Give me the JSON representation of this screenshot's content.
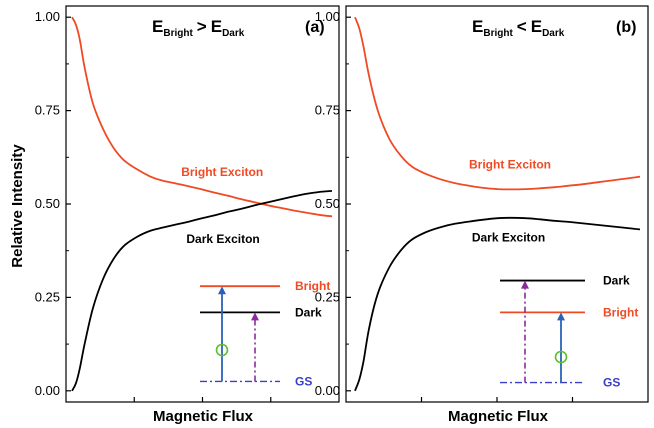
{
  "colors": {
    "bright": "#f04a25",
    "dark": "#000000",
    "gs": "#3a3fc8",
    "arrow_blue": "#2a62b8",
    "arrow_purple": "#8a2a9a",
    "circle": "#5abf2a"
  },
  "chart_data": [
    {
      "type": "line",
      "panel_label": "(a)",
      "title": {
        "lhs_main": "E",
        "lhs_sub": "Bright",
        "op": ">",
        "rhs_main": "E",
        "rhs_sub": "Dark"
      },
      "xlabel": "Magnetic Flux",
      "ylabel": "Relative Intensity",
      "xlim": [
        0,
        10
      ],
      "ylim": [
        -0.03,
        1.03
      ],
      "yticks": [
        0.0,
        0.25,
        0.5,
        0.75,
        1.0
      ],
      "ytick_labels": [
        "0.00",
        "0.25",
        "0.50",
        "0.75",
        "1.00"
      ],
      "grid": false,
      "series": [
        {
          "name": "Bright Exciton",
          "color_key": "bright",
          "x": [
            0.0,
            0.15,
            0.3,
            0.5,
            0.8,
            1.2,
            1.6,
            2.0,
            2.5,
            3.0,
            3.5,
            4.0,
            4.5,
            5.0,
            5.5,
            6.0,
            6.5,
            7.0,
            7.5,
            8.0,
            8.5,
            9.0,
            9.5,
            10.0
          ],
          "y": [
            1.0,
            0.98,
            0.94,
            0.86,
            0.77,
            0.7,
            0.65,
            0.617,
            0.593,
            0.574,
            0.562,
            0.555,
            0.547,
            0.539,
            0.53,
            0.522,
            0.513,
            0.505,
            0.497,
            0.49,
            0.483,
            0.477,
            0.471,
            0.467
          ]
        },
        {
          "name": "Dark Exciton",
          "color_key": "dark",
          "x": [
            0.0,
            0.15,
            0.3,
            0.5,
            0.8,
            1.2,
            1.6,
            2.0,
            2.5,
            3.0,
            3.5,
            4.0,
            4.5,
            5.0,
            5.5,
            6.0,
            6.5,
            7.0,
            7.5,
            8.0,
            8.5,
            9.0,
            9.5,
            10.0
          ],
          "y": [
            0.0,
            0.02,
            0.06,
            0.13,
            0.22,
            0.3,
            0.353,
            0.388,
            0.412,
            0.428,
            0.437,
            0.445,
            0.453,
            0.462,
            0.47,
            0.479,
            0.487,
            0.496,
            0.504,
            0.512,
            0.52,
            0.527,
            0.532,
            0.535
          ]
        }
      ],
      "annotations": [
        {
          "text": "Bright Exciton",
          "x": 4.2,
          "y": 0.575,
          "color_key": "bright"
        },
        {
          "text": "Dark Exciton",
          "x": 4.4,
          "y": 0.395,
          "color_key": "dark"
        }
      ],
      "inset": {
        "levels": [
          {
            "label": "Bright",
            "color_key": "bright",
            "y": 0.28
          },
          {
            "label": "Dark",
            "color_key": "dark",
            "y": 0.21
          },
          {
            "label": "GS",
            "color_key": "gs",
            "y": 0.025
          }
        ]
      }
    },
    {
      "type": "line",
      "panel_label": "(b)",
      "title": {
        "lhs_main": "E",
        "lhs_sub": "Bright",
        "op": "<",
        "rhs_main": "E",
        "rhs_sub": "Dark"
      },
      "xlabel": "Magnetic Flux",
      "ylabel": "",
      "xlim": [
        0,
        10
      ],
      "ylim": [
        -0.03,
        1.03
      ],
      "yticks": [
        0.0,
        0.25,
        0.5,
        0.75,
        1.0
      ],
      "ytick_labels": [
        "0.00",
        "0.25",
        "0.50",
        "0.75",
        "1.00"
      ],
      "grid": false,
      "series": [
        {
          "name": "Bright Exciton",
          "color_key": "bright",
          "x": [
            0.0,
            0.15,
            0.3,
            0.5,
            0.8,
            1.2,
            1.6,
            2.0,
            2.5,
            3.0,
            3.5,
            4.0,
            4.5,
            5.0,
            5.5,
            6.0,
            6.5,
            7.0,
            7.5,
            8.0,
            8.5,
            9.0,
            9.5,
            10.0
          ],
          "y": [
            1.0,
            0.97,
            0.92,
            0.84,
            0.75,
            0.675,
            0.63,
            0.6,
            0.58,
            0.566,
            0.556,
            0.549,
            0.543,
            0.54,
            0.539,
            0.54,
            0.542,
            0.545,
            0.549,
            0.553,
            0.558,
            0.563,
            0.568,
            0.573
          ]
        },
        {
          "name": "Dark Exciton",
          "color_key": "dark",
          "x": [
            0.0,
            0.15,
            0.3,
            0.5,
            0.8,
            1.2,
            1.6,
            2.0,
            2.5,
            3.0,
            3.5,
            4.0,
            4.5,
            5.0,
            5.5,
            6.0,
            6.5,
            7.0,
            7.5,
            8.0,
            8.5,
            9.0,
            9.5,
            10.0
          ],
          "y": [
            0.0,
            0.03,
            0.08,
            0.17,
            0.26,
            0.33,
            0.375,
            0.405,
            0.425,
            0.438,
            0.447,
            0.453,
            0.458,
            0.462,
            0.463,
            0.462,
            0.459,
            0.455,
            0.452,
            0.448,
            0.444,
            0.44,
            0.436,
            0.432
          ]
        }
      ],
      "annotations": [
        {
          "text": "Bright Exciton",
          "x": 4.0,
          "y": 0.595,
          "color_key": "bright"
        },
        {
          "text": "Dark Exciton",
          "x": 4.1,
          "y": 0.4,
          "color_key": "dark"
        }
      ],
      "inset": {
        "levels": [
          {
            "label": "Dark",
            "color_key": "dark",
            "y": 0.295
          },
          {
            "label": "Bright",
            "color_key": "bright",
            "y": 0.21
          },
          {
            "label": "GS",
            "color_key": "gs",
            "y": 0.022
          }
        ]
      }
    }
  ]
}
